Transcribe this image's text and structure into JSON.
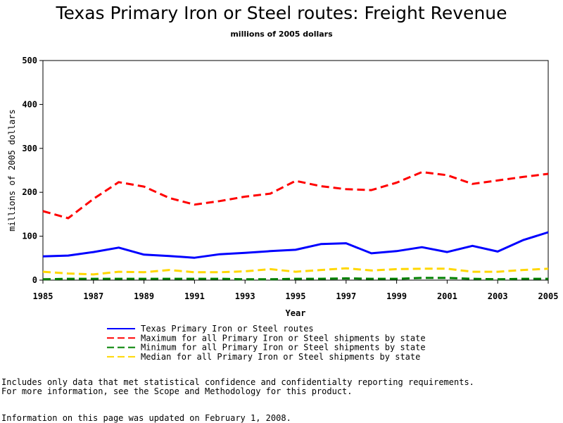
{
  "chart_data": {
    "type": "line",
    "title": "Texas Primary Iron or Steel routes: Freight Revenue",
    "subtitle": "millions of 2005 dollars",
    "xlabel": "Year",
    "ylabel": "millions of 2005 dollars",
    "xlim": [
      1985,
      2005
    ],
    "ylim": [
      0,
      500
    ],
    "xticks": [
      "1985",
      "1987",
      "1989",
      "1991",
      "1993",
      "1995",
      "1997",
      "1999",
      "2001",
      "2003",
      "2005"
    ],
    "yticks": [
      "0",
      "100",
      "200",
      "300",
      "400",
      "500"
    ],
    "x": [
      1985,
      1986,
      1987,
      1988,
      1989,
      1990,
      1991,
      1992,
      1993,
      1994,
      1995,
      1996,
      1997,
      1998,
      1999,
      2000,
      2001,
      2002,
      2003,
      2004,
      2005
    ],
    "grid": false,
    "legend_position": "bottom",
    "series": [
      {
        "name": "Texas Primary Iron or Steel routes",
        "color": "#0000ff",
        "style": "solid",
        "values": [
          54,
          56,
          64,
          74,
          58,
          55,
          51,
          59,
          62,
          66,
          69,
          82,
          84,
          61,
          66,
          75,
          64,
          78,
          65,
          91,
          109
        ]
      },
      {
        "name": "Maximum for all Primary Iron or Steel shipments by state",
        "color": "#ff0000",
        "style": "dashed",
        "values": [
          157,
          141,
          185,
          223,
          213,
          187,
          172,
          180,
          190,
          197,
          226,
          214,
          207,
          205,
          222,
          246,
          239,
          219,
          227,
          235,
          242
        ]
      },
      {
        "name": "Minimum for all Primary Iron or Steel shipments by state",
        "color": "#008000",
        "style": "dashed",
        "values": [
          2,
          3,
          3,
          3,
          3,
          3,
          3,
          3,
          2,
          2,
          3,
          3,
          4,
          3,
          3,
          5,
          5,
          3,
          2,
          3,
          3
        ]
      },
      {
        "name": "Median for all Primary Iron or Steel shipments by state",
        "color": "#ffd700",
        "style": "dashed",
        "values": [
          19,
          15,
          13,
          19,
          18,
          23,
          18,
          18,
          20,
          25,
          19,
          23,
          27,
          22,
          25,
          26,
          26,
          19,
          19,
          23,
          26
        ]
      }
    ]
  },
  "notes": [
    "Includes only data that met statistical confidence and confidentialty reporting requirements.",
    "For more information, see the Scope and Methodology for this product."
  ],
  "updated": "Information on this page was updated on February 1, 2008."
}
